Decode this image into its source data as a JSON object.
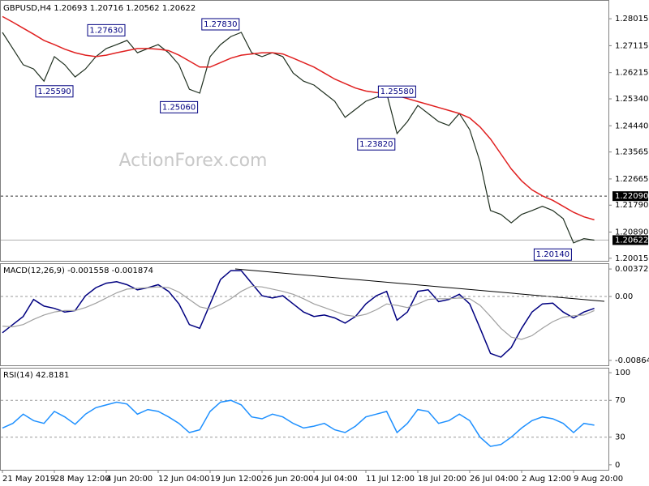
{
  "chart_data": [
    {
      "type": "line",
      "title": "GBPUSD,H4 1.20693 1.20716 1.20562 1.20622",
      "watermark": "ActionForex.com",
      "categories": [
        "21 May 2019",
        null,
        null,
        null,
        null,
        "28 May 12:00",
        null,
        null,
        null,
        null,
        "4 Jun 20:00",
        null,
        null,
        null,
        null,
        "12 Jun 04:00",
        null,
        null,
        null,
        null,
        "19 Jun 12:00",
        null,
        null,
        null,
        null,
        "26 Jun 20:00",
        null,
        null,
        null,
        null,
        "4 Jul 04:00",
        null,
        null,
        null,
        null,
        "11 Jul 12:00",
        null,
        null,
        null,
        null,
        "18 Jul 20:00",
        null,
        null,
        null,
        null,
        "26 Jul 04:00",
        null,
        null,
        null,
        null,
        "2 Aug 12:00",
        null,
        null,
        null,
        null,
        "9 Aug 20:00",
        null,
        null
      ],
      "series": [
        {
          "color": "#1f2f1f",
          "values": [
            1.2756,
            1.2702,
            1.2648,
            1.2634,
            1.2593,
            1.2675,
            1.2648,
            1.2607,
            1.2634,
            1.2675,
            1.2702,
            1.2715,
            1.2729,
            1.2688,
            1.2702,
            1.2715,
            1.2688,
            1.2648,
            1.2566,
            1.2553,
            1.2675,
            1.2715,
            1.2742,
            1.2756,
            1.2688,
            1.2675,
            1.2688,
            1.2675,
            1.262,
            1.2593,
            1.258,
            1.2553,
            1.2526,
            1.2472,
            1.2499,
            1.2526,
            1.2539,
            1.2553,
            1.2418,
            1.2458,
            1.2512,
            1.2485,
            1.2458,
            1.2445,
            1.2485,
            1.2431,
            1.2323,
            1.2161,
            1.2148,
            1.212,
            1.2148,
            1.2161,
            1.2175,
            1.2161,
            1.2134,
            1.2053,
            1.2067,
            1.2062
          ]
        },
        {
          "color": "#e02020",
          "values": [
            1.2809,
            1.279,
            1.277,
            1.275,
            1.2729,
            1.2715,
            1.27,
            1.2688,
            1.268,
            1.2675,
            1.268,
            1.2688,
            1.2695,
            1.2702,
            1.2702,
            1.27,
            1.2695,
            1.268,
            1.266,
            1.264,
            1.264,
            1.2655,
            1.267,
            1.268,
            1.2684,
            1.2688,
            1.2688,
            1.2684,
            1.267,
            1.2655,
            1.264,
            1.262,
            1.26,
            1.2585,
            1.257,
            1.256,
            1.2555,
            1.2553,
            1.2545,
            1.2535,
            1.2525,
            1.2515,
            1.2505,
            1.2495,
            1.2485,
            1.247,
            1.244,
            1.24,
            1.235,
            1.23,
            1.226,
            1.223,
            1.221,
            1.2195,
            1.2175,
            1.2155,
            1.214,
            1.213
          ]
        }
      ],
      "ylim": [
        1.1993,
        1.2856
      ],
      "yticks": [
        1.28015,
        1.27115,
        1.26215,
        {
          "value": 1.2534,
          "label": "1.25340"
        },
        {
          "value": 1.2444,
          "label": "1.24440"
        },
        1.23565,
        1.22665,
        {
          "value": 1.2179,
          "label": "1.21790"
        },
        {
          "value": 1.2089,
          "label": "1.20890"
        },
        1.20015
      ],
      "level": {
        "value": 1.2209,
        "label": "1.22090"
      },
      "last_price": 1.20622,
      "annotations": [
        {
          "x_index": 10,
          "value": 1.2763,
          "label": "1.27630"
        },
        {
          "x_index": 5,
          "value": 1.2559,
          "label": "1.25590"
        },
        {
          "x_index": 21,
          "value": 1.2783,
          "label": "1.27830"
        },
        {
          "x_index": 17,
          "value": 1.2506,
          "label": "1.25060"
        },
        {
          "x_index": 38,
          "value": 1.2558,
          "label": "1.25580"
        },
        {
          "x_index": 36,
          "value": 1.2382,
          "label": "1.23820"
        },
        {
          "x_index": 53,
          "value": 1.2014,
          "label": "1.20140"
        }
      ]
    },
    {
      "type": "line",
      "title": "MACD(12,26,9) -0.001558 -0.001874",
      "series": [
        {
          "color": "#000080",
          "values": [
            -0.0049,
            -0.0038,
            -0.0027,
            -0.0004,
            -0.0013,
            -0.0016,
            -0.0021,
            -0.0019,
            0.0001,
            0.0012,
            0.0018,
            0.002,
            0.0016,
            0.0009,
            0.0012,
            0.0016,
            0.0007,
            -0.001,
            -0.0038,
            -0.0043,
            -0.001,
            0.0023,
            0.0035,
            0.0035,
            0.0018,
            0.0001,
            -0.0002,
            0.0001,
            -0.001,
            -0.0021,
            -0.0027,
            -0.0025,
            -0.0029,
            -0.0036,
            -0.0027,
            -0.001,
            0.0001,
            0.0007,
            -0.0032,
            -0.0021,
            0.0007,
            0.0009,
            -0.0007,
            -0.0004,
            0.0003,
            -0.001,
            -0.0043,
            -0.0077,
            -0.0082,
            -0.0069,
            -0.0043,
            -0.0021,
            -0.001,
            -0.0009,
            -0.0021,
            -0.0029,
            -0.0021,
            -0.0016
          ]
        },
        {
          "color": "#a0a0a0",
          "values": [
            -0.004,
            -0.0041,
            -0.0038,
            -0.0031,
            -0.0025,
            -0.0021,
            -0.0019,
            -0.0019,
            -0.0015,
            -0.0009,
            -0.0002,
            0.0005,
            0.001,
            0.0011,
            0.0012,
            0.0013,
            0.0012,
            0.0006,
            -0.0004,
            -0.0014,
            -0.0017,
            -0.0011,
            -0.0003,
            0.0007,
            0.0014,
            0.0013,
            0.001,
            0.0007,
            0.0003,
            -0.0003,
            -0.001,
            -0.0015,
            -0.002,
            -0.0025,
            -0.0027,
            -0.0024,
            -0.0018,
            -0.001,
            -0.0012,
            -0.0015,
            -0.001,
            -0.0004,
            -0.0003,
            -0.0003,
            -0.0002,
            -0.0003,
            -0.0012,
            -0.0027,
            -0.0043,
            -0.0055,
            -0.0058,
            -0.0053,
            -0.0043,
            -0.0034,
            -0.0028,
            -0.0026,
            -0.0025,
            -0.0019
          ]
        }
      ],
      "ylim": [
        -0.00931,
        0.00439
      ],
      "yticks": [
        0.003722,
        {
          "value": 0,
          "label": "0.00"
        },
        -0.008643
      ],
      "levels": [
        0
      ]
    },
    {
      "type": "line",
      "title": "RSI(14) 42.8181",
      "series": [
        {
          "color": "#1e90ff",
          "values": [
            40,
            45,
            55,
            48,
            45,
            58,
            52,
            44,
            55,
            62,
            65,
            68,
            66,
            55,
            60,
            58,
            52,
            45,
            35,
            38,
            58,
            68,
            70,
            65,
            52,
            50,
            55,
            52,
            45,
            40,
            42,
            45,
            38,
            35,
            42,
            52,
            55,
            58,
            35,
            45,
            60,
            58,
            45,
            48,
            55,
            48,
            30,
            20,
            22,
            30,
            40,
            48,
            52,
            50,
            45,
            35,
            45,
            43
          ]
        }
      ],
      "ylim": [
        -5.4,
        104.5
      ],
      "yticks": [
        100,
        70,
        30,
        0
      ],
      "levels": [
        70,
        30
      ]
    }
  ]
}
